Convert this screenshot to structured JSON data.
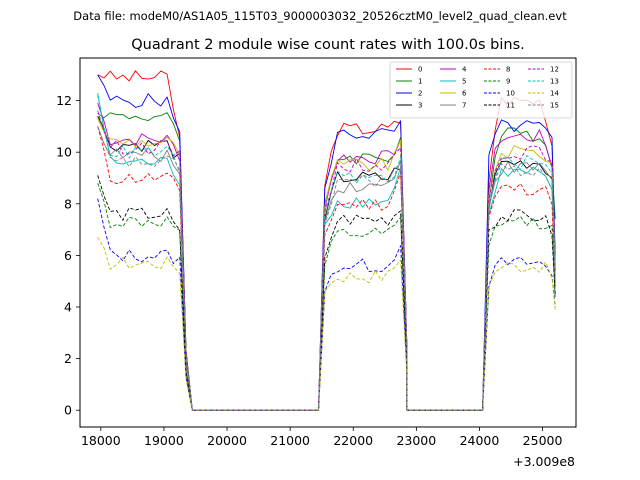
{
  "figure": {
    "suptitle": "Data file: modeM0/AS1A05_115T03_9000003032_20526cztM0_level2_quad_clean.evt"
  },
  "chart_data": {
    "type": "line",
    "title": "Quadrant 2 module wise count rates with 100.0s bins.",
    "xlabel": "",
    "ylabel": "",
    "x_offset_label": "+3.009e8",
    "x_offset": 300900000,
    "xlim": [
      17670,
      25530
    ],
    "ylim": [
      -0.65,
      13.65
    ],
    "x_ticks": [
      18000,
      19000,
      20000,
      21000,
      22000,
      23000,
      24000,
      25000
    ],
    "x_tick_labels": [
      "18000",
      "19000",
      "20000",
      "21000",
      "22000",
      "23000",
      "24000",
      "25000"
    ],
    "y_ticks": [
      0,
      2,
      4,
      6,
      8,
      10,
      12
    ],
    "y_tick_labels": [
      "0",
      "2",
      "4",
      "6",
      "8",
      "10",
      "12"
    ],
    "grid": false,
    "legend_position": "upper right",
    "legend_columns": 4,
    "bin_seconds": 100,
    "segments": [
      {
        "x_start": 17950,
        "x_end": 19250,
        "fall_x": 19350
      },
      {
        "x_start": 21550,
        "x_end": 22750,
        "fall_x": 22850
      },
      {
        "x_start": 24150,
        "x_end": 25150,
        "fall_x": null
      }
    ],
    "zero_level": [
      {
        "x_start": 19450,
        "x_end": 21450
      },
      {
        "x_start": 22850,
        "x_end": 24050
      }
    ],
    "series": [
      {
        "name": "0",
        "color": "#ff0000",
        "dash": "solid",
        "levels": [
          12.9,
          10.9,
          12.0
        ],
        "start_levels": [
          13.0,
          8.7,
          8.9
        ],
        "end_levels": [
          10.5,
          11.2,
          10.3
        ],
        "final": 5.8
      },
      {
        "name": "1",
        "color": "#008000",
        "dash": "solid",
        "levels": [
          11.4,
          9.8,
          10.7
        ],
        "start_levels": [
          11.5,
          8.0,
          8.1
        ],
        "end_levels": [
          10.3,
          10.5,
          9.6
        ],
        "final": 7.4
      },
      {
        "name": "2",
        "color": "#0000ff",
        "dash": "solid",
        "levels": [
          12.0,
          10.7,
          11.0
        ],
        "start_levels": [
          13.0,
          8.6,
          9.9
        ],
        "end_levels": [
          10.6,
          11.0,
          10.4
        ],
        "final": 6.0
      },
      {
        "name": "3",
        "color": "#000000",
        "dash": "solid",
        "levels": [
          10.3,
          9.0,
          9.6
        ],
        "start_levels": [
          11.4,
          7.4,
          7.8
        ],
        "end_levels": [
          9.7,
          9.5,
          9.0
        ],
        "final": 5.4
      },
      {
        "name": "4",
        "color": "#bf00bf",
        "dash": "solid",
        "levels": [
          10.5,
          9.8,
          10.6
        ],
        "start_levels": [
          11.9,
          7.8,
          8.5
        ],
        "end_levels": [
          9.9,
          10.5,
          9.6
        ],
        "final": 5.6
      },
      {
        "name": "5",
        "color": "#00bfbf",
        "dash": "solid",
        "levels": [
          9.6,
          8.1,
          9.2
        ],
        "start_levels": [
          12.3,
          7.2,
          7.6
        ],
        "end_levels": [
          8.9,
          9.3,
          8.3
        ],
        "final": 4.9
      },
      {
        "name": "6",
        "color": "#bfbf00",
        "dash": "solid",
        "levels": [
          10.4,
          9.5,
          10.0
        ],
        "start_levels": [
          11.3,
          7.9,
          8.3
        ],
        "end_levels": [
          10.0,
          10.2,
          9.5
        ],
        "final": 5.5
      },
      {
        "name": "7",
        "color": "#808080",
        "dash": "solid",
        "levels": [
          9.9,
          8.7,
          9.4
        ],
        "start_levels": [
          11.0,
          7.3,
          7.9
        ],
        "end_levels": [
          9.2,
          9.8,
          9.0
        ],
        "final": 5.1
      },
      {
        "name": "8",
        "color": "#ff0000",
        "dash": "dashed",
        "levels": [
          9.0,
          8.0,
          8.6
        ],
        "start_levels": [
          11.0,
          6.8,
          7.5
        ],
        "end_levels": [
          8.5,
          9.2,
          8.2
        ],
        "final": 4.8
      },
      {
        "name": "9",
        "color": "#008000",
        "dash": "dashed",
        "levels": [
          7.3,
          6.8,
          7.3
        ],
        "start_levels": [
          8.8,
          5.6,
          6.4
        ],
        "end_levels": [
          6.9,
          7.3,
          7.0
        ],
        "final": 4.3
      },
      {
        "name": "10",
        "color": "#0000ff",
        "dash": "dashed",
        "levels": [
          6.0,
          5.6,
          5.7
        ],
        "start_levels": [
          8.2,
          4.6,
          4.8
        ],
        "end_levels": [
          5.8,
          6.6,
          5.2
        ],
        "final": 4.0
      },
      {
        "name": "11",
        "color": "#000000",
        "dash": "dashed",
        "levels": [
          7.6,
          7.4,
          7.5
        ],
        "start_levels": [
          9.1,
          5.9,
          7.0
        ],
        "end_levels": [
          6.8,
          7.8,
          6.9
        ],
        "final": 4.5
      },
      {
        "name": "12",
        "color": "#bf00bf",
        "dash": "dashed",
        "levels": [
          10.2,
          9.5,
          10.0
        ],
        "start_levels": [
          11.6,
          7.7,
          8.2
        ],
        "end_levels": [
          9.8,
          10.1,
          9.4
        ],
        "final": 5.4
      },
      {
        "name": "13",
        "color": "#00bfbf",
        "dash": "dashed",
        "levels": [
          10.0,
          9.0,
          9.6
        ],
        "start_levels": [
          12.2,
          7.5,
          8.0
        ],
        "end_levels": [
          9.4,
          9.6,
          9.1
        ],
        "final": 5.2
      },
      {
        "name": "14",
        "color": "#bfbf00",
        "dash": "dashed",
        "levels": [
          5.7,
          5.2,
          5.6
        ],
        "start_levels": [
          6.7,
          4.6,
          4.8
        ],
        "end_levels": [
          5.5,
          6.0,
          5.2
        ],
        "final": 3.9
      },
      {
        "name": "15",
        "color": "#808080",
        "dash": "dashed",
        "levels": [
          9.6,
          8.9,
          9.3
        ],
        "start_levels": [
          11.0,
          7.2,
          7.8
        ],
        "end_levels": [
          9.4,
          9.6,
          8.8
        ],
        "final": 5.0
      }
    ]
  }
}
